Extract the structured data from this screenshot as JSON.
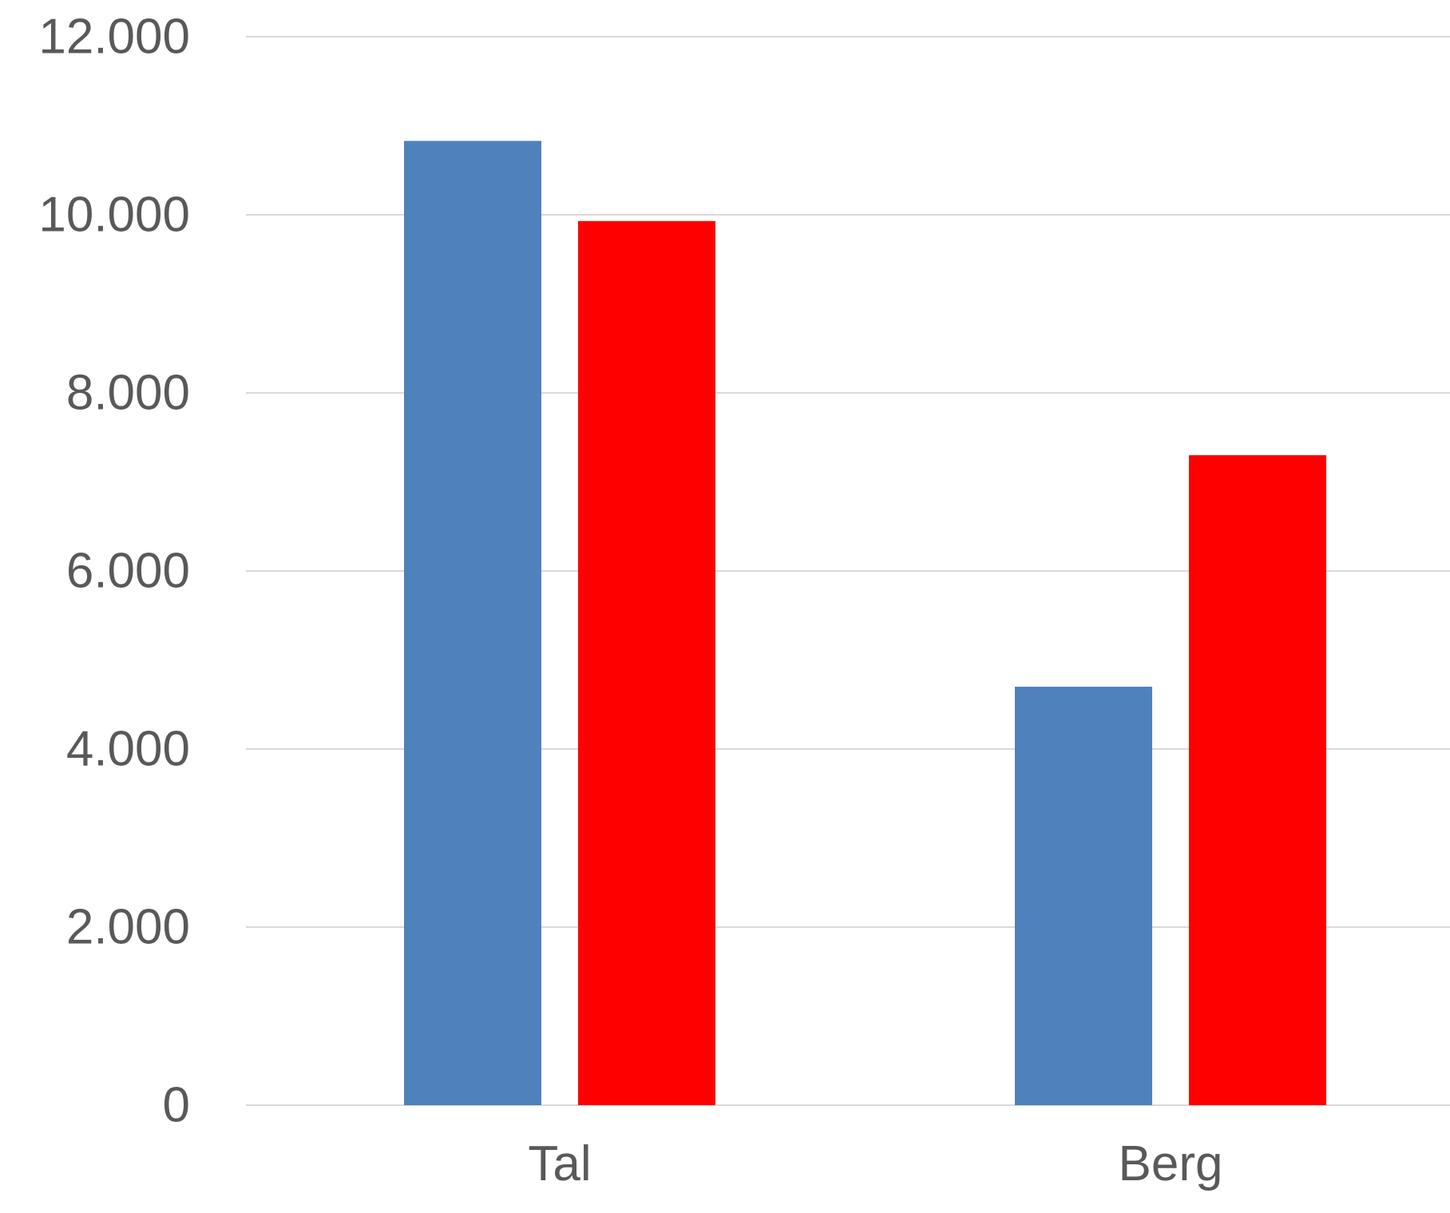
{
  "chart_data": {
    "type": "bar",
    "categories": [
      "Tal",
      "Berg"
    ],
    "series": [
      {
        "values": [
          10830,
          4700
        ],
        "color": "#4f81bd"
      },
      {
        "values": [
          9930,
          7300
        ],
        "color": "#ff0000"
      }
    ],
    "yticks": [
      0,
      2000,
      4000,
      6000,
      8000,
      10000,
      12000
    ],
    "ytick_labels": [
      "0",
      "2.000",
      "4.000",
      "6.000",
      "8.000",
      "10.000",
      "12.000"
    ],
    "ylim": [
      0,
      12000
    ],
    "grid": true,
    "legend": "none"
  }
}
